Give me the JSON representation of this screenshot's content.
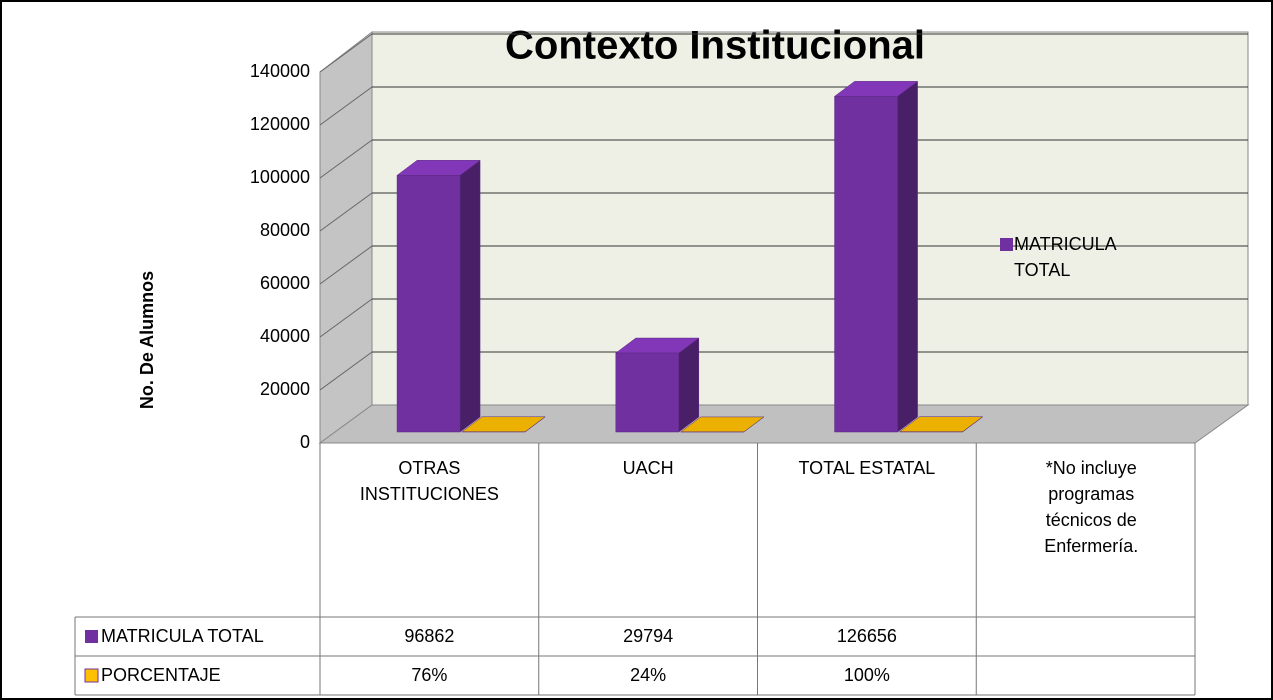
{
  "chart_data": {
    "type": "bar3d",
    "title": "Contexto Institucional",
    "y_label": "No. De Alumnos",
    "categories": [
      "OTRAS INSTITUCIONES",
      "UACH",
      "TOTAL ESTATAL",
      "*No incluye programas técnicos de Enfermería."
    ],
    "series": [
      {
        "name": "MATRICULA TOTAL",
        "color": "#7030a0",
        "values": [
          96862,
          29794,
          126656,
          null
        ]
      },
      {
        "name": "PORCENTAJE",
        "color": "#cc9900",
        "values": [
          76,
          24,
          100,
          null
        ],
        "value_labels": [
          "76%",
          "24%",
          "100%",
          null
        ],
        "legend": false
      }
    ],
    "ylim": [
      0,
      140000
    ],
    "yticks": [
      0,
      20000,
      40000,
      60000,
      80000,
      100000,
      120000,
      140000
    ],
    "grid": true,
    "legend": "right",
    "data_table": true
  }
}
